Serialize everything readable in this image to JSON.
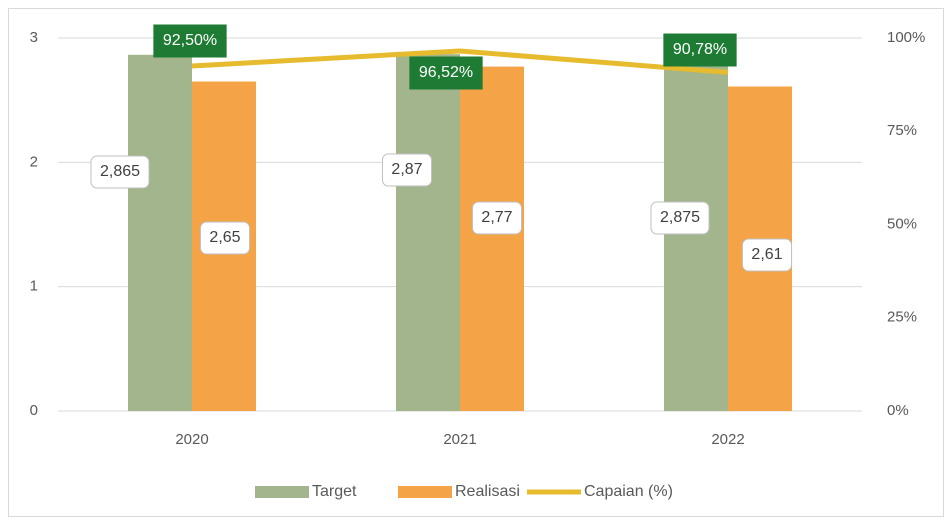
{
  "chart_data": {
    "type": "bar",
    "categories": [
      "2020",
      "2021",
      "2022"
    ],
    "series": [
      {
        "name": "Target",
        "color": "#a2b58c",
        "values": [
          2.865,
          2.87,
          2.875
        ],
        "value_labels": [
          "2,865",
          "2,87",
          "2,875"
        ]
      },
      {
        "name": "Realisasi",
        "color": "#f4a346",
        "values": [
          2.65,
          2.77,
          2.61
        ],
        "value_labels": [
          "2,65",
          "2,77",
          "2,61"
        ]
      },
      {
        "name": "Capaian (%)",
        "type": "line",
        "axis": "y2",
        "color": "#e6bb2e",
        "values": [
          92.5,
          96.52,
          90.78
        ],
        "value_labels": [
          "92,50%",
          "96,52%",
          "90,78%"
        ],
        "label_color": "#1e7b34"
      }
    ],
    "ylim": [
      0,
      3
    ],
    "yticks": [
      0,
      1,
      2,
      3
    ],
    "y2lim": [
      0,
      100
    ],
    "y2ticks": [
      {
        "value": 0,
        "label": "0%"
      },
      {
        "value": 25,
        "label": "25%"
      },
      {
        "value": 50,
        "label": "50%"
      },
      {
        "value": 75,
        "label": "75%"
      },
      {
        "value": 100,
        "label": "100%"
      }
    ],
    "grid": true,
    "legend": "bottom"
  }
}
